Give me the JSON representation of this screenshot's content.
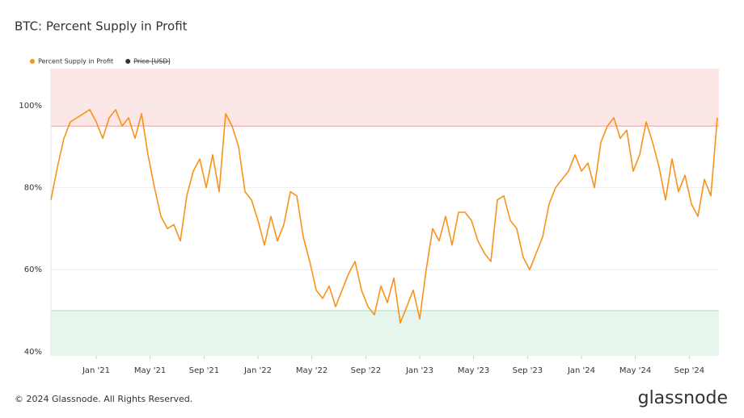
{
  "chart_data": {
    "type": "line",
    "title": "BTC: Percent Supply in Profit",
    "footer": "© 2024 Glassnode. All Rights Reserved.",
    "brand": "glassnode",
    "legend": [
      {
        "name": "Percent Supply in Profit",
        "color": "#f7931a",
        "active": true
      },
      {
        "name": "Price [USD]",
        "color": "#333333",
        "active": false
      }
    ],
    "x": [
      2020.72,
      2020.76,
      2020.8,
      2020.84,
      2020.88,
      2020.92,
      2020.96,
      2021.0,
      2021.04,
      2021.08,
      2021.12,
      2021.16,
      2021.2,
      2021.24,
      2021.28,
      2021.32,
      2021.36,
      2021.4,
      2021.44,
      2021.48,
      2021.52,
      2021.56,
      2021.6,
      2021.64,
      2021.68,
      2021.72,
      2021.76,
      2021.8,
      2021.84,
      2021.88,
      2021.92,
      2021.96,
      2022.0,
      2022.04,
      2022.08,
      2022.12,
      2022.16,
      2022.2,
      2022.24,
      2022.28,
      2022.32,
      2022.36,
      2022.4,
      2022.44,
      2022.48,
      2022.52,
      2022.56,
      2022.6,
      2022.64,
      2022.68,
      2022.72,
      2022.76,
      2022.8,
      2022.84,
      2022.88,
      2022.92,
      2022.96,
      2023.0,
      2023.04,
      2023.08,
      2023.12,
      2023.16,
      2023.2,
      2023.24,
      2023.28,
      2023.32,
      2023.36,
      2023.4,
      2023.44,
      2023.48,
      2023.52,
      2023.56,
      2023.6,
      2023.64,
      2023.68,
      2023.72,
      2023.76,
      2023.8,
      2023.84,
      2023.88,
      2023.92,
      2023.96,
      2024.0,
      2024.04,
      2024.08,
      2024.12,
      2024.16,
      2024.2,
      2024.24,
      2024.28,
      2024.32,
      2024.36,
      2024.4,
      2024.44,
      2024.48,
      2024.52,
      2024.56,
      2024.6,
      2024.64,
      2024.68,
      2024.72,
      2024.76,
      2024.8,
      2024.84
    ],
    "series": [
      {
        "name": "Percent Supply in Profit",
        "color": "#f7931a",
        "values": [
          77,
          85,
          92,
          96,
          97,
          98,
          99,
          96,
          92,
          97,
          99,
          95,
          97,
          92,
          98,
          88,
          80,
          73,
          70,
          71,
          67,
          78,
          84,
          87,
          80,
          88,
          79,
          98,
          95,
          90,
          79,
          77,
          72,
          66,
          73,
          67,
          71,
          79,
          78,
          68,
          62,
          55,
          53,
          56,
          51,
          55,
          59,
          62,
          55,
          51,
          49,
          56,
          52,
          58,
          47,
          51,
          55,
          48,
          60,
          70,
          67,
          73,
          66,
          74,
          74,
          72,
          67,
          64,
          62,
          77,
          78,
          72,
          70,
          63,
          60,
          64,
          68,
          76,
          80,
          82,
          84,
          88,
          84,
          86,
          80,
          91,
          95,
          97,
          92,
          94,
          84,
          88,
          96,
          91,
          85,
          77,
          87,
          79,
          83,
          76,
          73,
          82,
          78,
          97
        ]
      }
    ],
    "xlim": [
      2020.72,
      2024.85
    ],
    "xticks": [
      {
        "value": 2021.0,
        "label": "Jan '21"
      },
      {
        "value": 2021.333,
        "label": "May '21"
      },
      {
        "value": 2021.667,
        "label": "Sep '21"
      },
      {
        "value": 2022.0,
        "label": "Jan '22"
      },
      {
        "value": 2022.333,
        "label": "May '22"
      },
      {
        "value": 2022.667,
        "label": "Sep '22"
      },
      {
        "value": 2023.0,
        "label": "Jan '23"
      },
      {
        "value": 2023.333,
        "label": "May '23"
      },
      {
        "value": 2023.667,
        "label": "Sep '23"
      },
      {
        "value": 2024.0,
        "label": "Jan '24"
      },
      {
        "value": 2024.333,
        "label": "May '24"
      },
      {
        "value": 2024.667,
        "label": "Sep '24"
      }
    ],
    "ylim": [
      39,
      109
    ],
    "yticks": [
      {
        "value": 40,
        "label": "40%"
      },
      {
        "value": 60,
        "label": "60%"
      },
      {
        "value": 80,
        "label": "80%"
      },
      {
        "value": 100,
        "label": "100%"
      }
    ],
    "upper_threshold": 95,
    "upper_color": "#fde6e6",
    "upper_line": "#f0a0a0",
    "lower_threshold": 50,
    "lower_color": "#e6f6ec",
    "lower_line": "#a6dcb8",
    "grid": true
  }
}
